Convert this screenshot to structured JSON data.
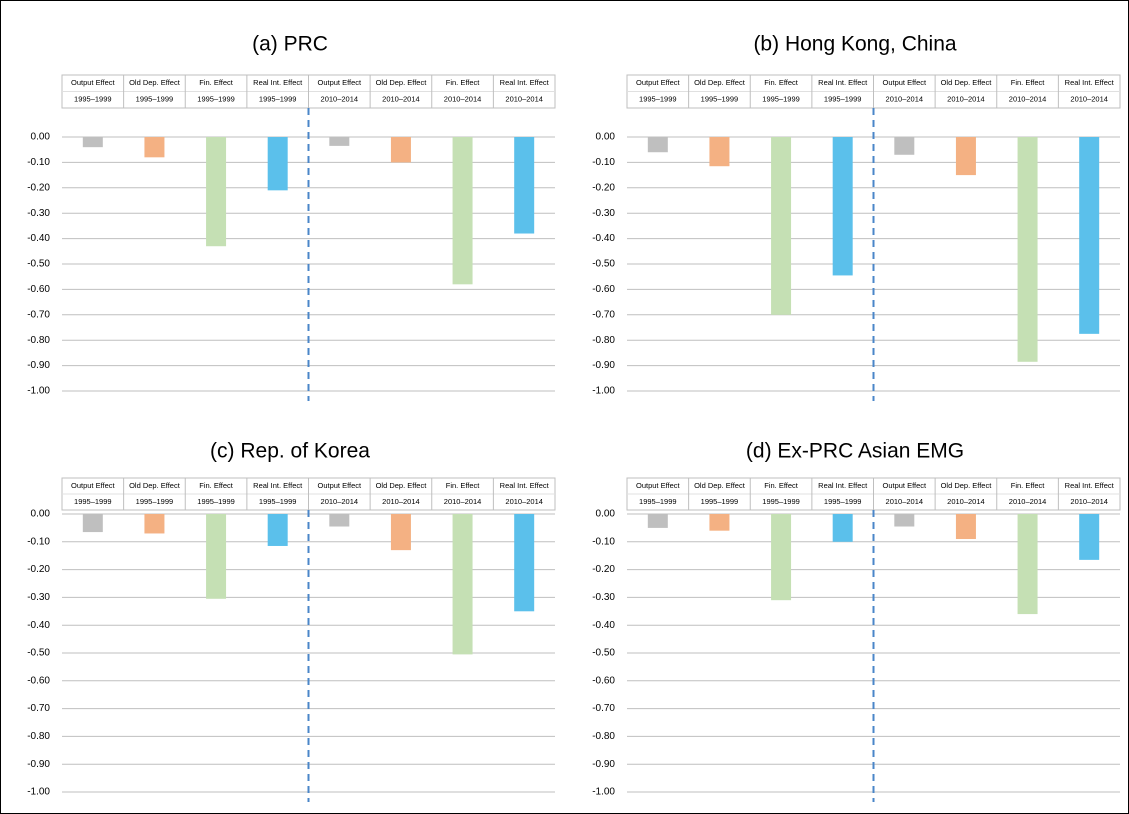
{
  "chart_data": [
    {
      "type": "bar",
      "title": "(a)  PRC",
      "categories": [
        [
          "Output Effect",
          "1995–1999"
        ],
        [
          "Old Dep. Effect",
          "1995–1999"
        ],
        [
          "Fin. Effect",
          "1995–1999"
        ],
        [
          "Real Int. Effect",
          "1995–1999"
        ],
        [
          "Output Effect",
          "2010–2014"
        ],
        [
          "Old Dep. Effect",
          "2010–2014"
        ],
        [
          "Fin. Effect",
          "2010–2014"
        ],
        [
          "Real Int. Effect",
          "2010–2014"
        ]
      ],
      "values": [
        -0.04,
        -0.08,
        -0.43,
        -0.21,
        -0.035,
        -0.1,
        -0.58,
        -0.38
      ],
      "colors": [
        "#bfbfbf",
        "#f4b183",
        "#c5e0b4",
        "#5bc0eb",
        "#bfbfbf",
        "#f4b183",
        "#c5e0b4",
        "#5bc0eb"
      ],
      "ylim": [
        -1.0,
        0.0
      ],
      "yticks": [
        {
          "value": 0,
          "label": "0.00"
        },
        {
          "value": -0.1,
          "label": "-0.10"
        },
        {
          "value": -0.2,
          "label": "-0.20"
        },
        {
          "value": -0.3,
          "label": "-0.30"
        },
        {
          "value": -0.4,
          "label": "-0.40"
        },
        {
          "value": -0.5,
          "label": "-0.50"
        },
        {
          "value": -0.6,
          "label": "-0.60"
        },
        {
          "value": -0.7,
          "label": "-0.70"
        },
        {
          "value": -0.8,
          "label": "-0.80"
        },
        {
          "value": -0.9,
          "label": "-0.90"
        },
        {
          "value": -1.0,
          "label": "-1.00"
        }
      ],
      "grid": true
    },
    {
      "type": "bar",
      "title": "(b)  Hong Kong, China",
      "categories": [
        [
          "Output Effect",
          "1995–1999"
        ],
        [
          "Old Dep. Effect",
          "1995–1999"
        ],
        [
          "Fin. Effect",
          "1995–1999"
        ],
        [
          "Real Int. Effect",
          "1995–1999"
        ],
        [
          "Output Effect",
          "2010–2014"
        ],
        [
          "Old Dep. Effect",
          "2010–2014"
        ],
        [
          "Fin. Effect",
          "2010–2014"
        ],
        [
          "Real Int. Effect",
          "2010–2014"
        ]
      ],
      "values": [
        -0.06,
        -0.115,
        -0.7,
        -0.545,
        -0.07,
        -0.15,
        -0.885,
        -0.775
      ],
      "colors": [
        "#bfbfbf",
        "#f4b183",
        "#c5e0b4",
        "#5bc0eb",
        "#bfbfbf",
        "#f4b183",
        "#c5e0b4",
        "#5bc0eb"
      ],
      "ylim": [
        -1.0,
        0.0
      ],
      "yticks": [
        {
          "value": 0,
          "label": "0.00"
        },
        {
          "value": -0.1,
          "label": "-0.10"
        },
        {
          "value": -0.2,
          "label": "-0.20"
        },
        {
          "value": -0.3,
          "label": "-0.30"
        },
        {
          "value": -0.4,
          "label": "-0.40"
        },
        {
          "value": -0.5,
          "label": "-0.50"
        },
        {
          "value": -0.6,
          "label": "-0.60"
        },
        {
          "value": -0.7,
          "label": "-0.70"
        },
        {
          "value": -0.8,
          "label": "-0.80"
        },
        {
          "value": -0.9,
          "label": "-0.90"
        },
        {
          "value": -1.0,
          "label": "-1.00"
        }
      ],
      "grid": true
    },
    {
      "type": "bar",
      "title": "(c)  Rep. of Korea",
      "categories": [
        [
          "Output Effect",
          "1995–1999"
        ],
        [
          "Old Dep. Effect",
          "1995–1999"
        ],
        [
          "Fin. Effect",
          "1995–1999"
        ],
        [
          "Real Int. Effect",
          "1995–1999"
        ],
        [
          "Output Effect",
          "2010–2014"
        ],
        [
          "Old Dep. Effect",
          "2010–2014"
        ],
        [
          "Fin. Effect",
          "2010–2014"
        ],
        [
          "Real Int. Effect",
          "2010–2014"
        ]
      ],
      "values": [
        -0.065,
        -0.07,
        -0.305,
        -0.115,
        -0.045,
        -0.13,
        -0.505,
        -0.35
      ],
      "colors": [
        "#bfbfbf",
        "#f4b183",
        "#c5e0b4",
        "#5bc0eb",
        "#bfbfbf",
        "#f4b183",
        "#c5e0b4",
        "#5bc0eb"
      ],
      "ylim": [
        -1.0,
        0.0
      ],
      "yticks": [
        {
          "value": 0,
          "label": "0.00"
        },
        {
          "value": -0.1,
          "label": "-0.10"
        },
        {
          "value": -0.2,
          "label": "-0.20"
        },
        {
          "value": -0.3,
          "label": "-0.30"
        },
        {
          "value": -0.4,
          "label": "-0.40"
        },
        {
          "value": -0.5,
          "label": "-0.50"
        },
        {
          "value": -0.6,
          "label": "-0.60"
        },
        {
          "value": -0.7,
          "label": "-0.70"
        },
        {
          "value": -0.8,
          "label": "-0.80"
        },
        {
          "value": -0.9,
          "label": "-0.90"
        },
        {
          "value": -1.0,
          "label": "-1.00"
        }
      ],
      "grid": true
    },
    {
      "type": "bar",
      "title": "(d)  Ex-PRC Asian EMG",
      "categories": [
        [
          "Output Effect",
          "1995–1999"
        ],
        [
          "Old Dep. Effect",
          "1995–1999"
        ],
        [
          "Fin. Effect",
          "1995–1999"
        ],
        [
          "Real Int. Effect",
          "1995–1999"
        ],
        [
          "Output Effect",
          "2010–2014"
        ],
        [
          "Old Dep. Effect",
          "2010–2014"
        ],
        [
          "Fin. Effect",
          "2010–2014"
        ],
        [
          "Real Int. Effect",
          "2010–2014"
        ]
      ],
      "values": [
        -0.05,
        -0.06,
        -0.31,
        -0.1,
        -0.045,
        -0.09,
        -0.36,
        -0.165
      ],
      "colors": [
        "#bfbfbf",
        "#f4b183",
        "#c5e0b4",
        "#5bc0eb",
        "#bfbfbf",
        "#f4b183",
        "#c5e0b4",
        "#5bc0eb"
      ],
      "ylim": [
        -1.0,
        0.0
      ],
      "yticks": [
        {
          "value": 0,
          "label": "0.00"
        },
        {
          "value": -0.1,
          "label": "-0.10"
        },
        {
          "value": -0.2,
          "label": "-0.20"
        },
        {
          "value": -0.3,
          "label": "-0.30"
        },
        {
          "value": -0.4,
          "label": "-0.40"
        },
        {
          "value": -0.5,
          "label": "-0.50"
        },
        {
          "value": -0.6,
          "label": "-0.60"
        },
        {
          "value": -0.7,
          "label": "-0.70"
        },
        {
          "value": -0.8,
          "label": "-0.80"
        },
        {
          "value": -0.9,
          "label": "-0.90"
        },
        {
          "value": -1.0,
          "label": "-1.00"
        }
      ],
      "grid": true
    }
  ]
}
